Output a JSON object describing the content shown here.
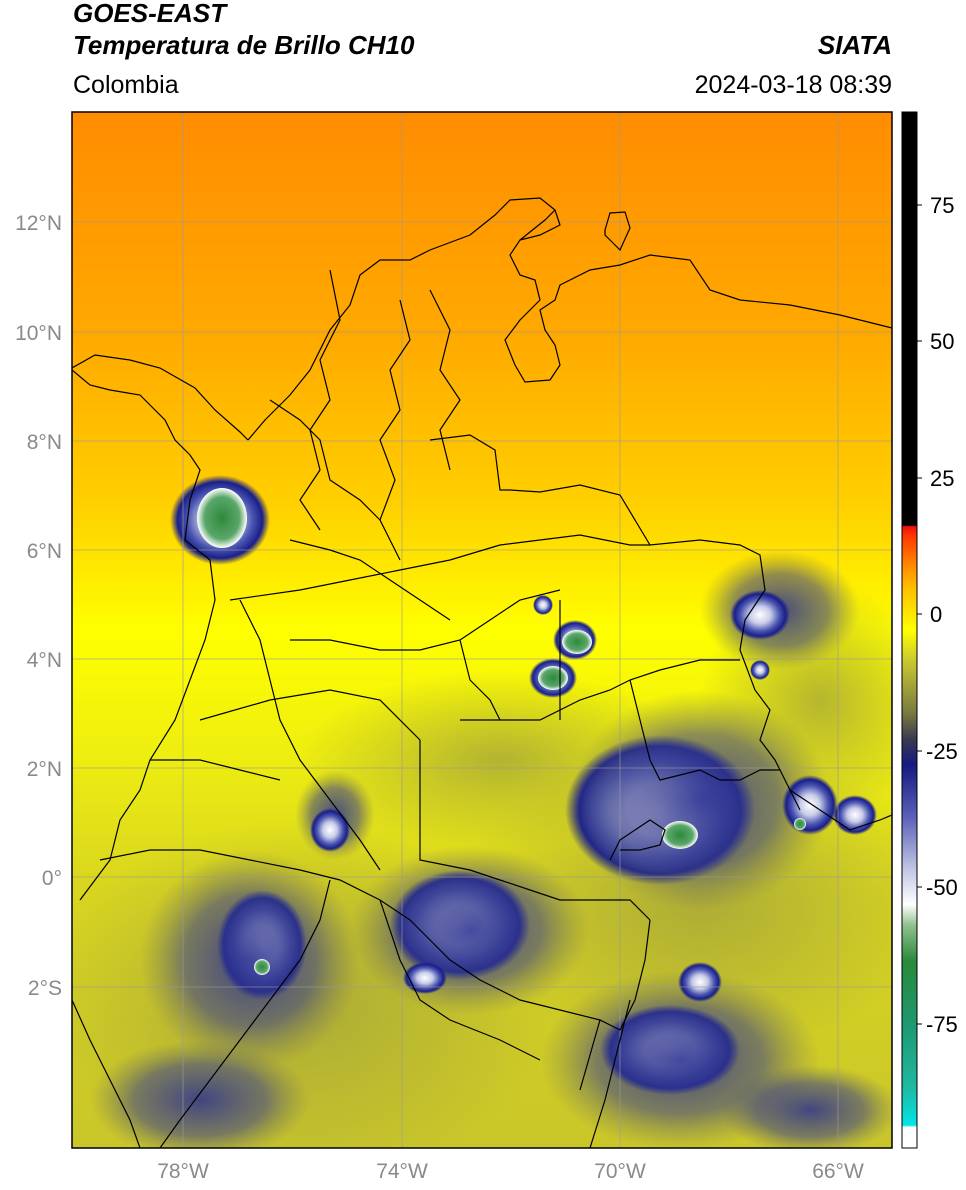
{
  "header": {
    "satellite": "GOES-EAST",
    "product": "Temperatura de Brillo CH10",
    "region": "Colombia",
    "agency": "SIATA",
    "timestamp": "2024-03-18 08:39"
  },
  "map": {
    "lat_ticks": [
      "12°N",
      "10°N",
      "8°N",
      "6°N",
      "4°N",
      "2°N",
      "0°",
      "2°S"
    ],
    "lon_ticks": [
      "78°W",
      "74°W",
      "70°W",
      "66°W"
    ]
  },
  "colorbar": {
    "ticks": [
      "75",
      "50",
      "25",
      "0",
      "-25",
      "-50",
      "-75"
    ],
    "colors": {
      "black": "#000000",
      "red": "#e8100a",
      "orange": "#ff9900",
      "yellow": "#ffff00",
      "olive": "#8a8a3a",
      "navy": "#1a1f8a",
      "white": "#ffffff",
      "green": "#2e8a3a",
      "cyan": "#00e5e5"
    }
  }
}
